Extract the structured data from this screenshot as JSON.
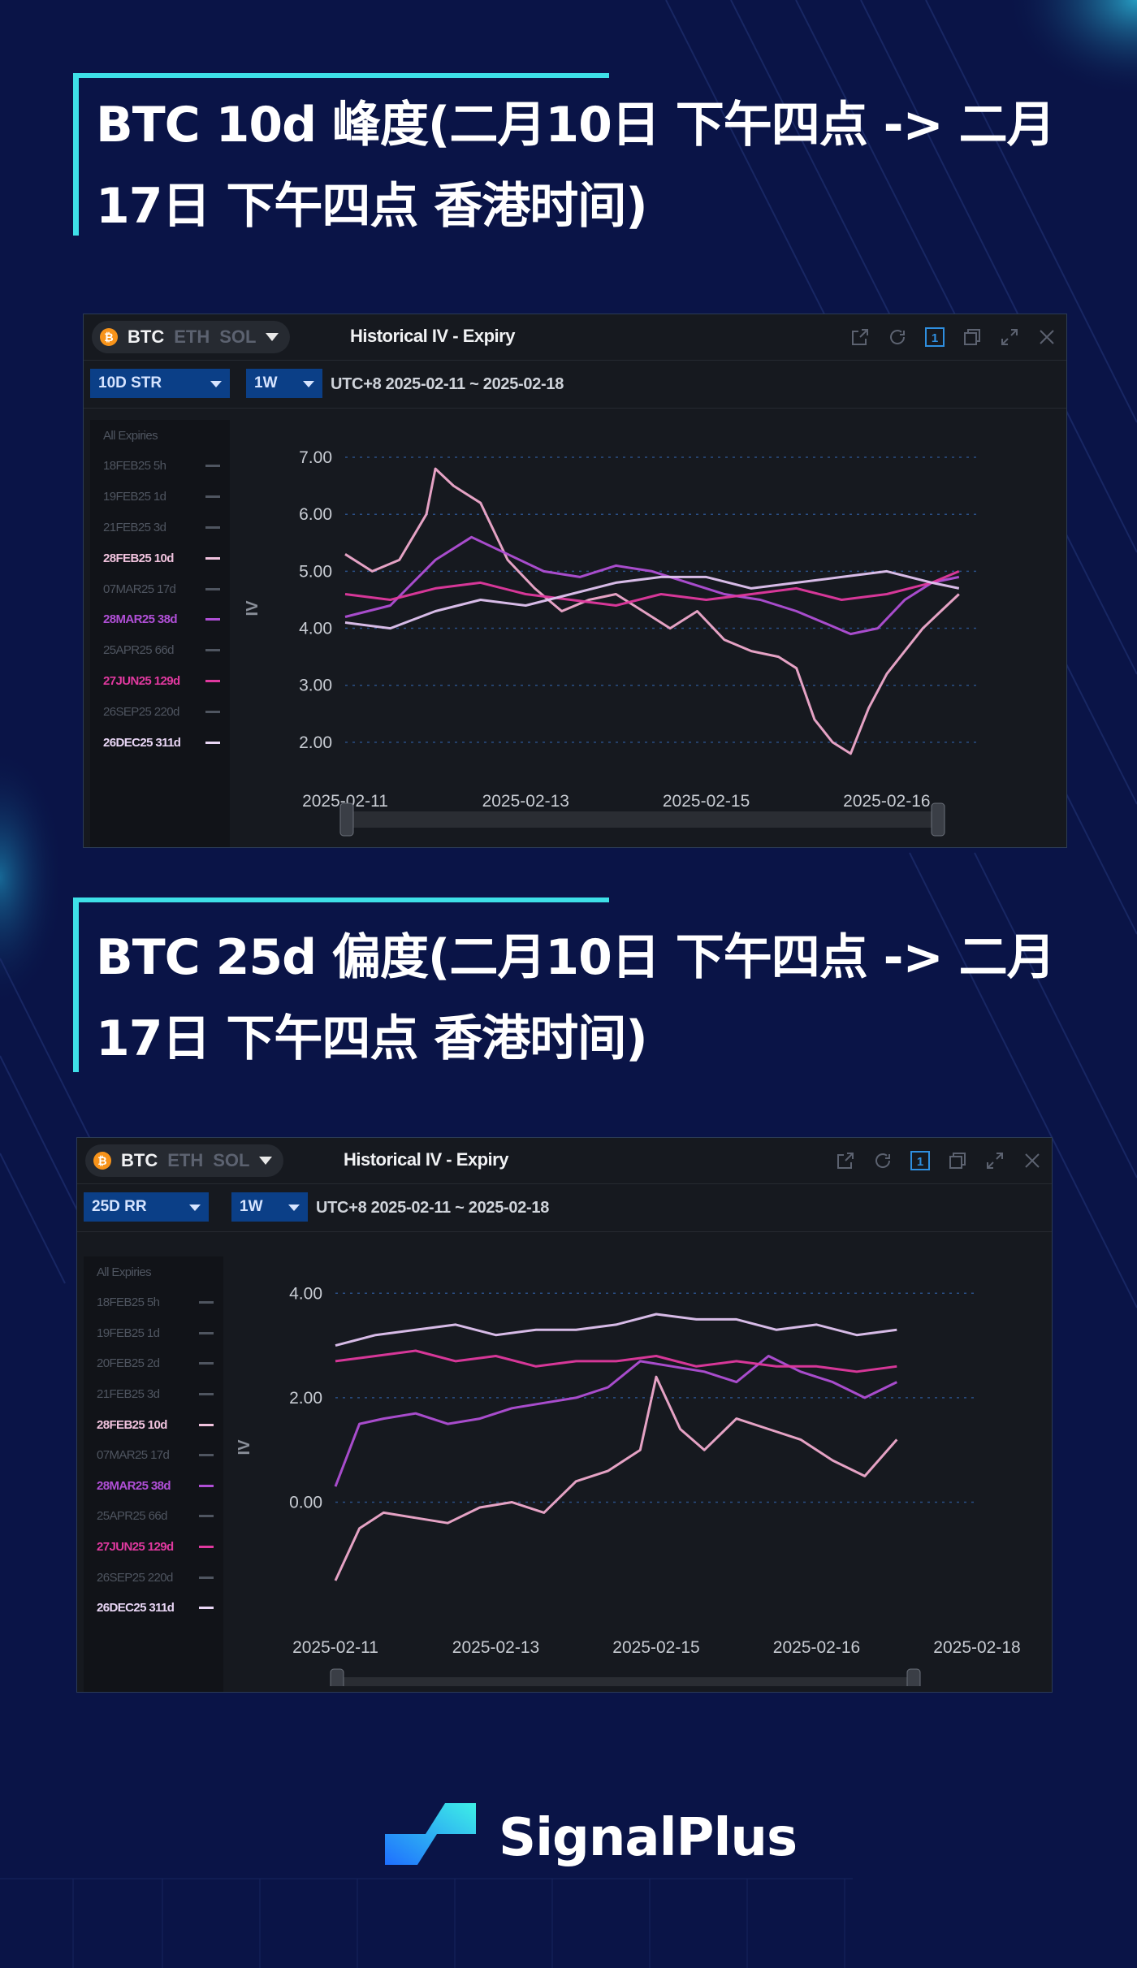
{
  "section1": {
    "headline": "BTC 10d 峰度(二月10日 下午四点 -> 二月17日 下午四点 香港时间)",
    "widget": {
      "coins": [
        "BTC",
        "ETH",
        "SOL"
      ],
      "title": "Historical IV - Expiry",
      "metric_select": "10D STR",
      "period_select": "1W",
      "date_range": "UTC+8 2025-02-11 ~ 2025-02-18",
      "sidebar": [
        {
          "label": "All Expiries",
          "color": "#4f5560",
          "bold": false,
          "all": true
        },
        {
          "label": "18FEB25 5h",
          "color": "#4f5560",
          "bold": false
        },
        {
          "label": "19FEB25 1d",
          "color": "#4f5560",
          "bold": false
        },
        {
          "label": "21FEB25 3d",
          "color": "#4f5560",
          "bold": false
        },
        {
          "label": "28FEB25 10d",
          "color": "#f0c2dd",
          "bold": true
        },
        {
          "label": "07MAR25 17d",
          "color": "#4f5560",
          "bold": false
        },
        {
          "label": "28MAR25 38d",
          "color": "#b04fd6",
          "bold": true
        },
        {
          "label": "25APR25 66d",
          "color": "#4f5560",
          "bold": false
        },
        {
          "label": "27JUN25 129d",
          "color": "#e0399f",
          "bold": true
        },
        {
          "label": "26SEP25 220d",
          "color": "#4f5560",
          "bold": false
        },
        {
          "label": "26DEC25 311d",
          "color": "#e9d6f5",
          "bold": true
        }
      ]
    }
  },
  "section2": {
    "headline": "BTC 25d 偏度(二月10日 下午四点 -> 二月17日 下午四点 香港时间)",
    "widget": {
      "coins": [
        "BTC",
        "ETH",
        "SOL"
      ],
      "title": "Historical IV - Expiry",
      "metric_select": "25D RR",
      "period_select": "1W",
      "date_range": "UTC+8 2025-02-11 ~ 2025-02-18",
      "sidebar": [
        {
          "label": "All Expiries",
          "color": "#4f5560",
          "bold": false,
          "all": true
        },
        {
          "label": "18FEB25 5h",
          "color": "#4f5560",
          "bold": false
        },
        {
          "label": "19FEB25 1d",
          "color": "#4f5560",
          "bold": false
        },
        {
          "label": "20FEB25 2d",
          "color": "#4f5560",
          "bold": false
        },
        {
          "label": "21FEB25 3d",
          "color": "#4f5560",
          "bold": false
        },
        {
          "label": "28FEB25 10d",
          "color": "#f0c2dd",
          "bold": true
        },
        {
          "label": "07MAR25 17d",
          "color": "#4f5560",
          "bold": false
        },
        {
          "label": "28MAR25 38d",
          "color": "#b04fd6",
          "bold": true
        },
        {
          "label": "25APR25 66d",
          "color": "#4f5560",
          "bold": false
        },
        {
          "label": "27JUN25 129d",
          "color": "#e0399f",
          "bold": true
        },
        {
          "label": "26SEP25 220d",
          "color": "#4f5560",
          "bold": false
        },
        {
          "label": "26DEC25 311d",
          "color": "#e9d6f5",
          "bold": true
        }
      ]
    }
  },
  "footer": {
    "brand": "SignalPlus"
  },
  "chart_data": [
    {
      "type": "line",
      "ylabel": "IV",
      "ylim": [
        1.5,
        7.2
      ],
      "yticks": [
        "7.00",
        "6.00",
        "5.00",
        "4.00",
        "3.00",
        "2.00"
      ],
      "ytick_values": [
        7,
        6,
        5,
        4,
        3,
        2
      ],
      "xticks": [
        "2025-02-11",
        "2025-02-13",
        "2025-02-15",
        "2025-02-16"
      ],
      "xtick_positions": [
        0,
        2,
        4,
        6
      ],
      "xlim": [
        0,
        7
      ],
      "grid": true,
      "colors": {
        "28FEB25 10d": "#f0aacd",
        "28MAR25 38d": "#b04fd6",
        "27JUN25 129d": "#e0399f",
        "26DEC25 311d": "#e2c4f2"
      },
      "series": [
        {
          "name": "28FEB25 10d",
          "x": [
            0,
            0.3,
            0.6,
            0.9,
            1.0,
            1.2,
            1.5,
            1.8,
            2.1,
            2.4,
            2.7,
            3.0,
            3.3,
            3.6,
            3.9,
            4.2,
            4.5,
            4.8,
            5.0,
            5.2,
            5.4,
            5.6,
            5.8,
            6.0,
            6.2,
            6.4,
            6.6,
            6.8
          ],
          "values": [
            5.3,
            5.0,
            5.2,
            6.0,
            6.8,
            6.5,
            6.2,
            5.2,
            4.7,
            4.3,
            4.5,
            4.6,
            4.3,
            4.0,
            4.3,
            3.8,
            3.6,
            3.5,
            3.3,
            2.4,
            2.0,
            1.8,
            2.6,
            3.2,
            3.6,
            4.0,
            4.3,
            4.6
          ]
        },
        {
          "name": "28MAR25 38d",
          "x": [
            0,
            0.5,
            1.0,
            1.4,
            1.8,
            2.2,
            2.6,
            3.0,
            3.4,
            3.8,
            4.2,
            4.6,
            5.0,
            5.3,
            5.6,
            5.9,
            6.2,
            6.5,
            6.8
          ],
          "values": [
            4.2,
            4.4,
            5.2,
            5.6,
            5.3,
            5.0,
            4.9,
            5.1,
            5.0,
            4.8,
            4.6,
            4.5,
            4.3,
            4.1,
            3.9,
            4.0,
            4.5,
            4.8,
            4.9
          ]
        },
        {
          "name": "27JUN25 129d",
          "x": [
            0,
            0.5,
            1.0,
            1.5,
            2.0,
            2.5,
            3.0,
            3.5,
            4.0,
            4.5,
            5.0,
            5.5,
            6.0,
            6.5,
            6.8
          ],
          "values": [
            4.6,
            4.5,
            4.7,
            4.8,
            4.6,
            4.5,
            4.4,
            4.6,
            4.5,
            4.6,
            4.7,
            4.5,
            4.6,
            4.8,
            5.0
          ]
        },
        {
          "name": "26DEC25 311d",
          "x": [
            0,
            0.5,
            1.0,
            1.5,
            2.0,
            2.5,
            3.0,
            3.5,
            4.0,
            4.5,
            5.0,
            5.5,
            6.0,
            6.5,
            6.8
          ],
          "values": [
            4.1,
            4.0,
            4.3,
            4.5,
            4.4,
            4.6,
            4.8,
            4.9,
            4.9,
            4.7,
            4.8,
            4.9,
            5.0,
            4.8,
            4.7
          ]
        }
      ]
    },
    {
      "type": "line",
      "ylabel": "IV",
      "ylim": [
        -2.2,
        4.3
      ],
      "yticks": [
        "4.00",
        "2.00",
        "0.00"
      ],
      "ytick_values": [
        4,
        2,
        0
      ],
      "xticks": [
        "2025-02-11",
        "2025-02-13",
        "2025-02-15",
        "2025-02-16",
        "2025-02-18"
      ],
      "xtick_positions": [
        0,
        2,
        4,
        6,
        8
      ],
      "xlim": [
        0,
        8
      ],
      "grid": true,
      "colors": {
        "28FEB25 10d": "#f0aacd",
        "28MAR25 38d": "#b04fd6",
        "27JUN25 129d": "#e0399f",
        "26DEC25 311d": "#e2c4f2"
      },
      "series": [
        {
          "name": "28FEB25 10d",
          "x": [
            0,
            0.3,
            0.6,
            1.0,
            1.4,
            1.8,
            2.2,
            2.6,
            3.0,
            3.4,
            3.8,
            4.0,
            4.3,
            4.6,
            5.0,
            5.4,
            5.8,
            6.2,
            6.6,
            7.0
          ],
          "values": [
            -1.5,
            -0.5,
            -0.2,
            -0.3,
            -0.4,
            -0.1,
            0.0,
            -0.2,
            0.4,
            0.6,
            1.0,
            2.4,
            1.4,
            1.0,
            1.6,
            1.4,
            1.2,
            0.8,
            0.5,
            1.2
          ]
        },
        {
          "name": "28MAR25 38d",
          "x": [
            0,
            0.3,
            0.6,
            1.0,
            1.4,
            1.8,
            2.2,
            2.6,
            3.0,
            3.4,
            3.8,
            4.2,
            4.6,
            5.0,
            5.4,
            5.8,
            6.2,
            6.6,
            7.0
          ],
          "values": [
            0.3,
            1.5,
            1.6,
            1.7,
            1.5,
            1.6,
            1.8,
            1.9,
            2.0,
            2.2,
            2.7,
            2.6,
            2.5,
            2.3,
            2.8,
            2.5,
            2.3,
            2.0,
            2.3
          ]
        },
        {
          "name": "27JUN25 129d",
          "x": [
            0,
            0.5,
            1.0,
            1.5,
            2.0,
            2.5,
            3.0,
            3.5,
            4.0,
            4.5,
            5.0,
            5.5,
            6.0,
            6.5,
            7.0
          ],
          "values": [
            2.7,
            2.8,
            2.9,
            2.7,
            2.8,
            2.6,
            2.7,
            2.7,
            2.8,
            2.6,
            2.7,
            2.6,
            2.6,
            2.5,
            2.6
          ]
        },
        {
          "name": "26DEC25 311d",
          "x": [
            0,
            0.5,
            1.0,
            1.5,
            2.0,
            2.5,
            3.0,
            3.5,
            4.0,
            4.5,
            5.0,
            5.5,
            6.0,
            6.5,
            7.0
          ],
          "values": [
            3.0,
            3.2,
            3.3,
            3.4,
            3.2,
            3.3,
            3.3,
            3.4,
            3.6,
            3.5,
            3.5,
            3.3,
            3.4,
            3.2,
            3.3
          ]
        }
      ]
    }
  ]
}
